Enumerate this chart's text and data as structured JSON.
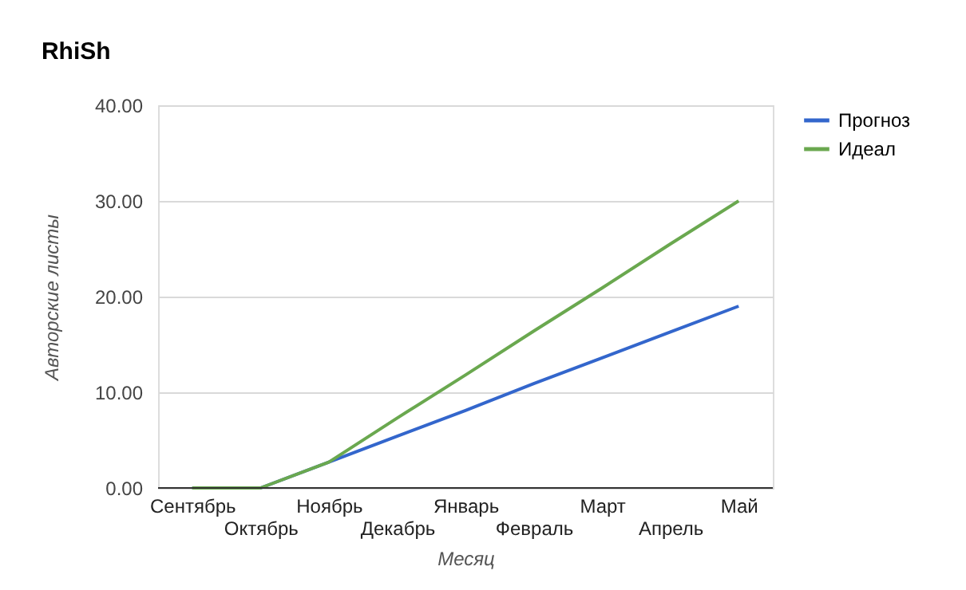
{
  "chart_data": {
    "type": "line",
    "title": "RhiSh",
    "xlabel": "Месяц",
    "ylabel": "Авторские листы",
    "categories": [
      "Сентябрь",
      "Октябрь",
      "Ноябрь",
      "Декабрь",
      "Январь",
      "Февраль",
      "Март",
      "Апрель",
      "Май"
    ],
    "series": [
      {
        "name": "Прогноз",
        "color": "#3366cc",
        "values": [
          0,
          0,
          2.7,
          5.4,
          8.1,
          10.9,
          13.6,
          16.3,
          19
        ]
      },
      {
        "name": "Идеал",
        "color": "#6aa84f",
        "values": [
          0,
          0,
          2.7,
          7.3,
          11.8,
          16.4,
          20.9,
          25.5,
          30
        ]
      }
    ],
    "ylim": [
      0,
      40
    ],
    "yticks": [
      {
        "value": 0,
        "label": "0.00"
      },
      {
        "value": 10,
        "label": "10.00"
      },
      {
        "value": 20,
        "label": "20.00"
      },
      {
        "value": 30,
        "label": "30.00"
      },
      {
        "value": 40,
        "label": "40.00"
      }
    ],
    "grid": "y",
    "legend": "top right",
    "line_style": "solid",
    "marker": "none"
  }
}
